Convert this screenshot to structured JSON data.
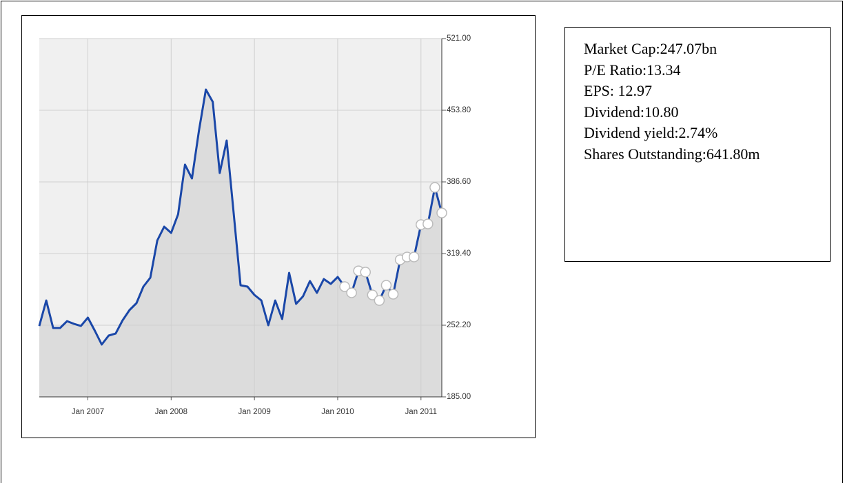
{
  "chart_data": {
    "type": "line",
    "x": [
      "2006-06",
      "2006-07",
      "2006-08",
      "2006-09",
      "2006-10",
      "2006-11",
      "2006-12",
      "2007-01",
      "2007-02",
      "2007-03",
      "2007-04",
      "2007-05",
      "2007-06",
      "2007-07",
      "2007-08",
      "2007-09",
      "2007-10",
      "2007-11",
      "2007-12",
      "2008-01",
      "2008-02",
      "2008-03",
      "2008-04",
      "2008-05",
      "2008-06",
      "2008-07",
      "2008-08",
      "2008-09",
      "2008-10",
      "2008-11",
      "2008-12",
      "2009-01",
      "2009-02",
      "2009-03",
      "2009-04",
      "2009-05",
      "2009-06",
      "2009-07",
      "2009-08",
      "2009-09",
      "2009-10",
      "2009-11",
      "2009-12",
      "2010-01",
      "2010-02",
      "2010-03",
      "2010-04",
      "2010-05",
      "2010-06",
      "2010-07",
      "2010-08",
      "2010-09",
      "2010-10",
      "2010-11",
      "2010-12",
      "2011-01",
      "2011-02",
      "2011-03",
      "2011-04"
    ],
    "series": [
      {
        "color": "#1a47a8",
        "fill": "#dcdcdc",
        "values": [
          251.5,
          275.4,
          249.6,
          249.6,
          256,
          253.5,
          251.5,
          259.3,
          247,
          234.1,
          242.5,
          244.4,
          256.7,
          266.4,
          272.9,
          288.4,
          296.8,
          331.7,
          344.6,
          338.8,
          356.2,
          402.8,
          389.8,
          434.4,
          473.2,
          461.6,
          395,
          425.4,
          358.2,
          289.7,
          288.4,
          280.6,
          275.4,
          252.2,
          275.4,
          258,
          301.3,
          272.2,
          279.3,
          293.6,
          282.6,
          295.5,
          291,
          297.4,
          288.4,
          282.6,
          303.2,
          302,
          280.6,
          275.4,
          289.7,
          281.3,
          313.6,
          316.2,
          316.2,
          346.5,
          347.2,
          381.4,
          357.5
        ]
      }
    ],
    "marker_start": "2010-02",
    "xlim": [
      "2006-06",
      "2011-04"
    ],
    "xticks": [
      {
        "value": "2007-01",
        "label": "Jan 2007"
      },
      {
        "value": "2008-01",
        "label": "Jan 2008"
      },
      {
        "value": "2009-01",
        "label": "Jan 2009"
      },
      {
        "value": "2010-01",
        "label": "Jan 2010"
      },
      {
        "value": "2011-01",
        "label": "Jan 2011"
      }
    ],
    "ylim": [
      185,
      521
    ],
    "yticks": [
      {
        "value": 185,
        "label": "185.00"
      },
      {
        "value": 252.2,
        "label": "252.20"
      },
      {
        "value": 319.4,
        "label": "319.40"
      },
      {
        "value": 386.6,
        "label": "386.60"
      },
      {
        "value": 453.8,
        "label": "453.80"
      },
      {
        "value": 521,
        "label": "521.00"
      }
    ],
    "grid": true
  },
  "info": [
    "Market Cap:247.07bn",
    "P/E Ratio:13.34",
    "EPS: 12.97",
    "Dividend:10.80",
    "Dividend yield:2.74%",
    "Shares Outstanding:641.80m"
  ]
}
